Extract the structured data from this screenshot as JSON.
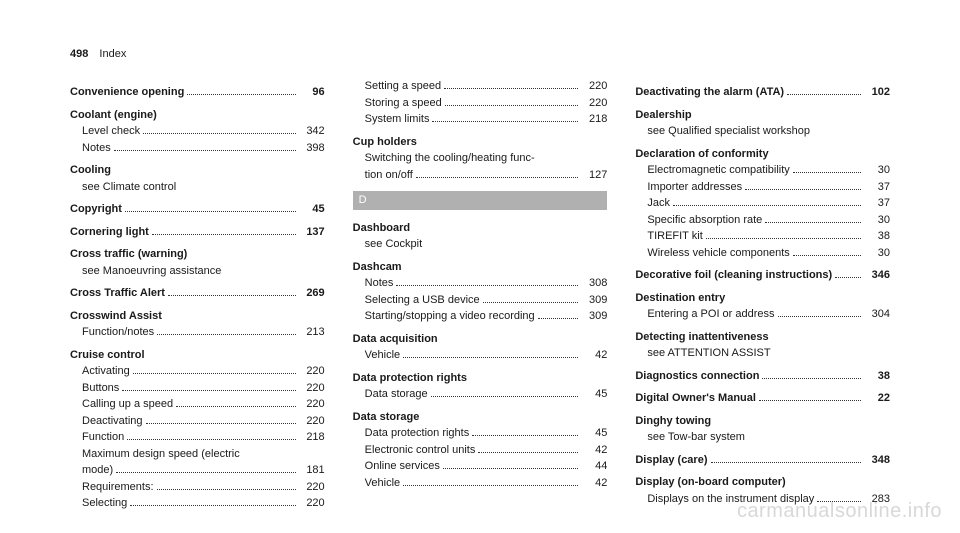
{
  "header": {
    "page_number": "498",
    "section": "Index"
  },
  "watermark": "carmanualsonline.info",
  "section_letter": "D",
  "columns": [
    [
      {
        "type": "main",
        "label": "Convenience opening",
        "page": "96"
      },
      {
        "type": "group",
        "label": "Coolant (engine)",
        "subs": [
          {
            "label": "Level check",
            "page": "342"
          },
          {
            "label": "Notes",
            "page": "398"
          }
        ]
      },
      {
        "type": "group",
        "label": "Cooling",
        "subs": [
          {
            "see": "Climate control"
          }
        ]
      },
      {
        "type": "main",
        "label": "Copyright",
        "page": "45"
      },
      {
        "type": "main",
        "label": "Cornering light",
        "page": "137"
      },
      {
        "type": "group",
        "label": "Cross traffic (warning)",
        "subs": [
          {
            "see": "Manoeuvring assistance"
          }
        ]
      },
      {
        "type": "main",
        "label": "Cross Traffic Alert",
        "page": "269"
      },
      {
        "type": "group",
        "label": "Crosswind Assist",
        "subs": [
          {
            "label": "Function/notes",
            "page": "213"
          }
        ]
      },
      {
        "type": "group",
        "label": "Cruise control",
        "subs": [
          {
            "label": "Activating",
            "page": "220"
          },
          {
            "label": "Buttons",
            "page": "220"
          },
          {
            "label": "Calling up a speed",
            "page": "220"
          },
          {
            "label": "Deactivating",
            "page": "220"
          },
          {
            "label": "Function",
            "page": "218"
          },
          {
            "label": "Maximum design speed (electric mode)",
            "page": "181",
            "wrap": true
          },
          {
            "label": "Requirements:",
            "page": "220"
          },
          {
            "label": "Selecting",
            "page": "220"
          }
        ]
      }
    ],
    [
      {
        "type": "subonly",
        "subs": [
          {
            "label": "Setting a speed",
            "page": "220"
          },
          {
            "label": "Storing a speed",
            "page": "220"
          },
          {
            "label": "System limits",
            "page": "218"
          }
        ]
      },
      {
        "type": "group",
        "label": "Cup holders",
        "subs": [
          {
            "label": "Switching the cooling/heating func-tion on/off",
            "page": "127",
            "wrap": true,
            "wrap_split": [
              "Switching the cooling/heating func-",
              "tion on/off"
            ]
          }
        ]
      },
      {
        "type": "letter"
      },
      {
        "type": "group",
        "label": "Dashboard",
        "subs": [
          {
            "see": "Cockpit"
          }
        ]
      },
      {
        "type": "group",
        "label": "Dashcam",
        "subs": [
          {
            "label": "Notes",
            "page": "308"
          },
          {
            "label": "Selecting a USB device",
            "page": "309"
          },
          {
            "label": "Starting/stopping a video recording",
            "page": "309"
          }
        ]
      },
      {
        "type": "group",
        "label": "Data acquisition",
        "subs": [
          {
            "label": "Vehicle",
            "page": "42"
          }
        ]
      },
      {
        "type": "group",
        "label": "Data protection rights",
        "subs": [
          {
            "label": "Data storage",
            "page": "45"
          }
        ]
      },
      {
        "type": "group",
        "label": "Data storage",
        "subs": [
          {
            "label": "Data protection rights",
            "page": "45"
          },
          {
            "label": "Electronic control units",
            "page": "42"
          },
          {
            "label": "Online services",
            "page": "44"
          },
          {
            "label": "Vehicle",
            "page": "42"
          }
        ]
      }
    ],
    [
      {
        "type": "main",
        "label": "Deactivating the alarm (ATA)",
        "page": "102"
      },
      {
        "type": "group",
        "label": "Dealership",
        "subs": [
          {
            "see": "Qualified specialist workshop"
          }
        ]
      },
      {
        "type": "group",
        "label": "Declaration of conformity",
        "subs": [
          {
            "label": "Electromagnetic compatibility",
            "page": "30"
          },
          {
            "label": "Importer addresses",
            "page": "37"
          },
          {
            "label": "Jack",
            "page": "37"
          },
          {
            "label": "Specific absorption rate",
            "page": "30"
          },
          {
            "label": "TIREFIT kit",
            "page": "38"
          },
          {
            "label": "Wireless vehicle components",
            "page": "30"
          }
        ]
      },
      {
        "type": "main",
        "label": "Decorative foil (cleaning instructions)",
        "page": "346"
      },
      {
        "type": "group",
        "label": "Destination entry",
        "subs": [
          {
            "label": "Entering a POI or address",
            "page": "304"
          }
        ]
      },
      {
        "type": "group",
        "label": "Detecting inattentiveness",
        "subs": [
          {
            "see": "ATTENTION ASSIST"
          }
        ]
      },
      {
        "type": "main",
        "label": "Diagnostics connection",
        "page": "38"
      },
      {
        "type": "main",
        "label": "Digital Owner's Manual",
        "page": "22"
      },
      {
        "type": "group",
        "label": "Dinghy towing",
        "subs": [
          {
            "see": "Tow-bar system"
          }
        ]
      },
      {
        "type": "main",
        "label": "Display (care)",
        "page": "348"
      },
      {
        "type": "group",
        "label": "Display (on-board computer)",
        "subs": [
          {
            "label": "Displays on the instrument display",
            "page": "283"
          }
        ]
      }
    ]
  ]
}
